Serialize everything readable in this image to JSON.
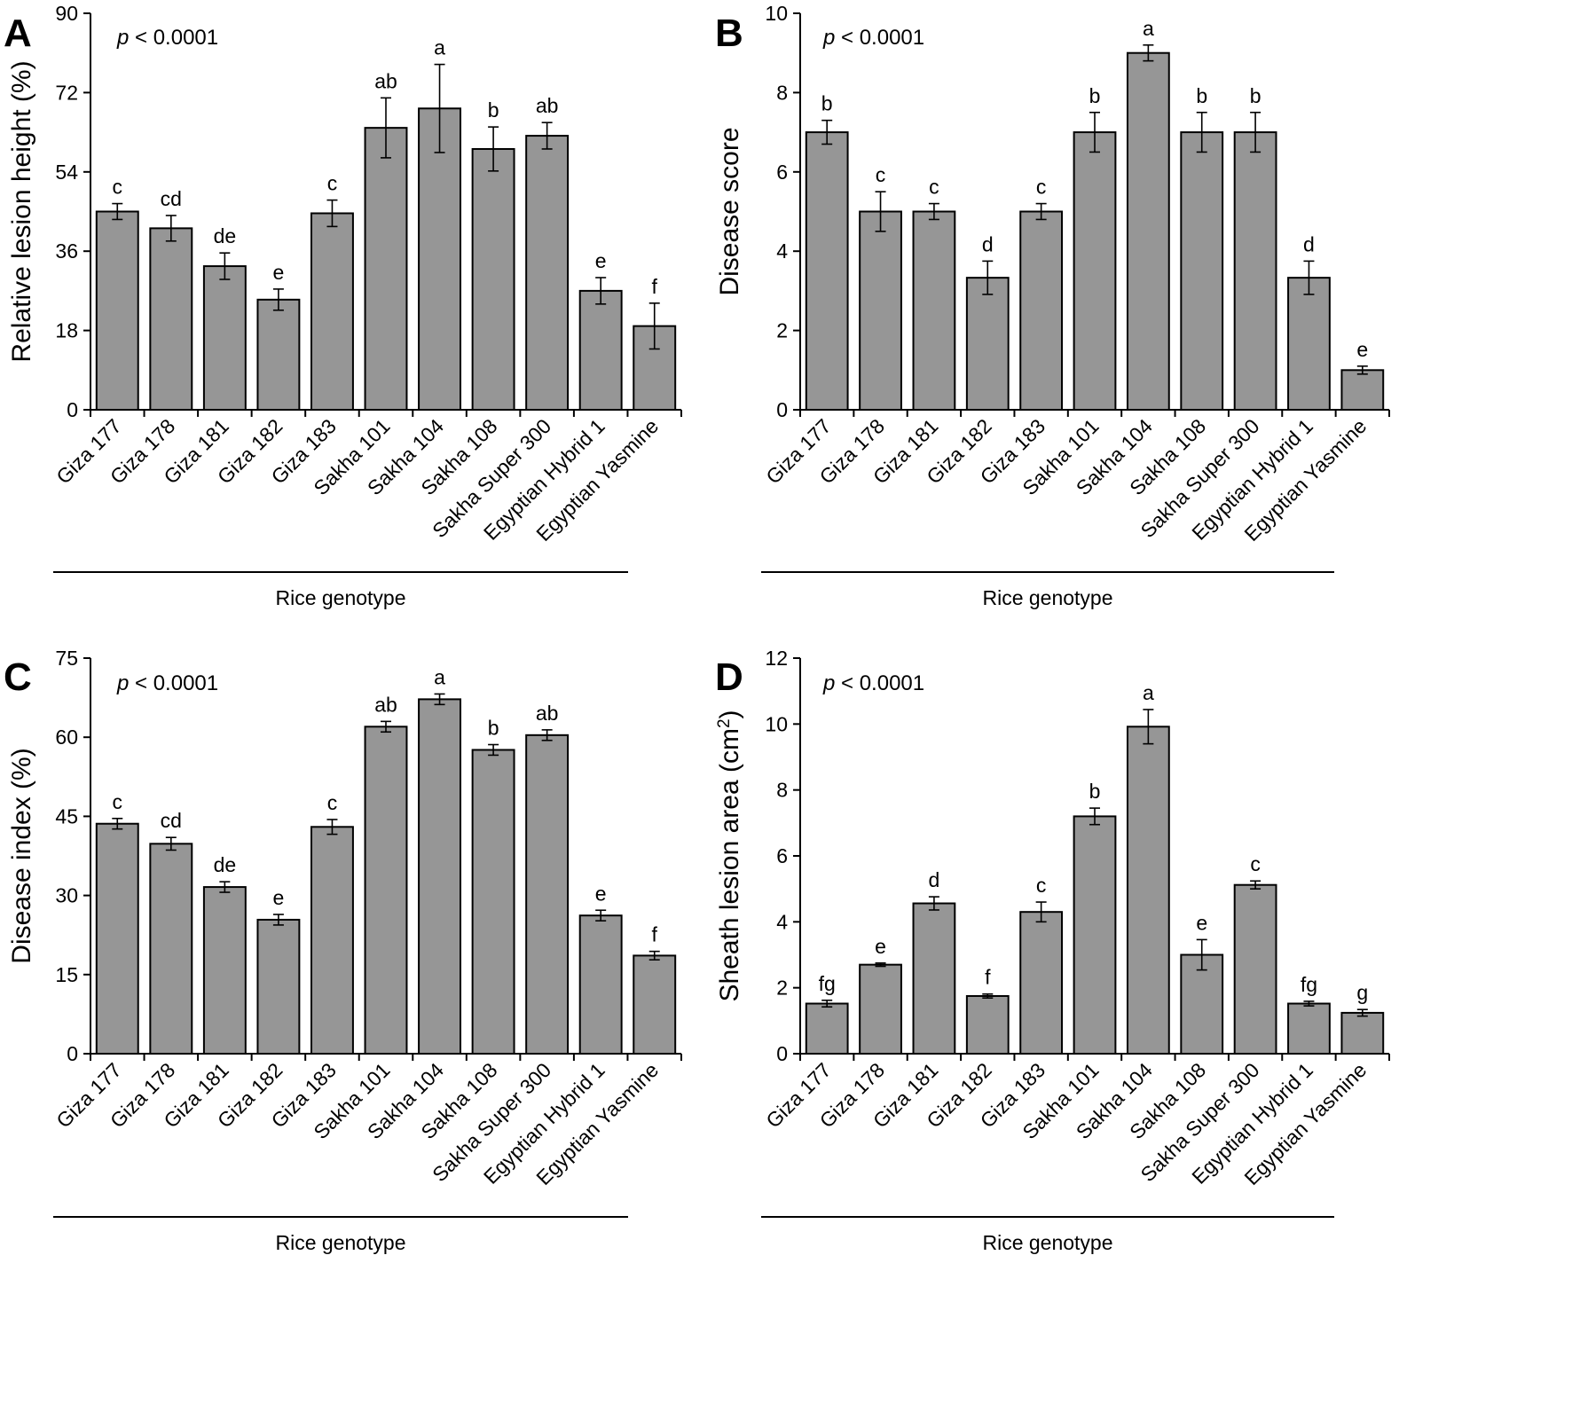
{
  "figure": {
    "x_title": "Rice genotype",
    "p_prefix": "p",
    "p_suffix": " < 0.0001"
  },
  "chart_data": [
    {
      "panel": "A",
      "type": "bar",
      "categories": [
        "Giza 177",
        "Giza 178",
        "Giza 181",
        "Giza 182",
        "Giza 183",
        "Sakha 101",
        "Sakha 104",
        "Sakha 108",
        "Sakha Super 300",
        "Egyptian Hybrid 1",
        "Egyptian Yasmine"
      ],
      "values": [
        45.0,
        41.2,
        32.6,
        25.0,
        44.6,
        64.0,
        68.4,
        59.2,
        62.2,
        27.0,
        19.0
      ],
      "errors": [
        1.8,
        2.9,
        3.0,
        2.4,
        3.0,
        6.8,
        10.0,
        5.0,
        3.0,
        3.0,
        5.2
      ],
      "letters": [
        "c",
        "cd",
        "de",
        "e",
        "c",
        "ab",
        "a",
        "b",
        "ab",
        "e",
        "f"
      ],
      "ylabel": "Relative lesion height (%)",
      "xlabel": "Rice genotype",
      "ylim": [
        0,
        90
      ],
      "yticks": [
        0,
        18,
        36,
        54,
        72,
        90
      ],
      "p_text": "p < 0.0001"
    },
    {
      "panel": "B",
      "type": "bar",
      "categories": [
        "Giza 177",
        "Giza 178",
        "Giza 181",
        "Giza 182",
        "Giza 183",
        "Sakha 101",
        "Sakha 104",
        "Sakha 108",
        "Sakha Super 300",
        "Egyptian Hybrid 1",
        "Egyptian Yasmine"
      ],
      "values": [
        7.0,
        5.0,
        5.0,
        3.33,
        5.0,
        7.0,
        9.0,
        7.0,
        7.0,
        3.33,
        1.0
      ],
      "errors": [
        0.3,
        0.5,
        0.2,
        0.42,
        0.2,
        0.5,
        0.2,
        0.5,
        0.5,
        0.42,
        0.1
      ],
      "letters": [
        "b",
        "c",
        "c",
        "d",
        "c",
        "b",
        "a",
        "b",
        "b",
        "d",
        "e"
      ],
      "ylabel": "Disease score",
      "xlabel": "Rice genotype",
      "ylim": [
        0,
        10
      ],
      "yticks": [
        0,
        2,
        4,
        6,
        8,
        10
      ],
      "p_text": "p < 0.0001"
    },
    {
      "panel": "C",
      "type": "bar",
      "categories": [
        "Giza 177",
        "Giza 178",
        "Giza 181",
        "Giza 182",
        "Giza 183",
        "Sakha 101",
        "Sakha 104",
        "Sakha 108",
        "Sakha Super 300",
        "Egyptian Hybrid 1",
        "Egyptian Yasmine"
      ],
      "values": [
        43.6,
        39.8,
        31.6,
        25.4,
        43.0,
        62.0,
        67.2,
        57.6,
        60.4,
        26.2,
        18.6
      ],
      "errors": [
        1.0,
        1.2,
        1.0,
        1.0,
        1.4,
        1.0,
        1.0,
        1.0,
        1.0,
        1.0,
        0.8
      ],
      "letters": [
        "c",
        "cd",
        "de",
        "e",
        "c",
        "ab",
        "a",
        "b",
        "ab",
        "e",
        "f"
      ],
      "ylabel": "Disease index (%)",
      "xlabel": "Rice genotype",
      "ylim": [
        0,
        75
      ],
      "yticks": [
        0,
        15,
        30,
        45,
        60,
        75
      ],
      "p_text": "p < 0.0001"
    },
    {
      "panel": "D",
      "type": "bar",
      "categories": [
        "Giza 177",
        "Giza 178",
        "Giza 181",
        "Giza 182",
        "Giza 183",
        "Sakha 101",
        "Sakha 104",
        "Sakha 108",
        "Sakha Super 300",
        "Egyptian Hybrid 1",
        "Egyptian Yasmine"
      ],
      "values": [
        1.52,
        2.7,
        4.56,
        1.75,
        4.3,
        7.2,
        9.92,
        3.0,
        5.12,
        1.52,
        1.24
      ],
      "errors": [
        0.1,
        0.05,
        0.2,
        0.06,
        0.3,
        0.25,
        0.52,
        0.46,
        0.12,
        0.07,
        0.1
      ],
      "letters": [
        "fg",
        "e",
        "d",
        "f",
        "c",
        "b",
        "a",
        "e",
        "c",
        "fg",
        "g"
      ],
      "ylabel_main": "Sheath lesion area (cm",
      "ylabel_sup": "2",
      "ylabel_end": ")",
      "xlabel": "Rice genotype",
      "ylim": [
        0,
        12
      ],
      "yticks": [
        0,
        2,
        4,
        6,
        8,
        10,
        12
      ],
      "p_text": "p < 0.0001"
    }
  ]
}
